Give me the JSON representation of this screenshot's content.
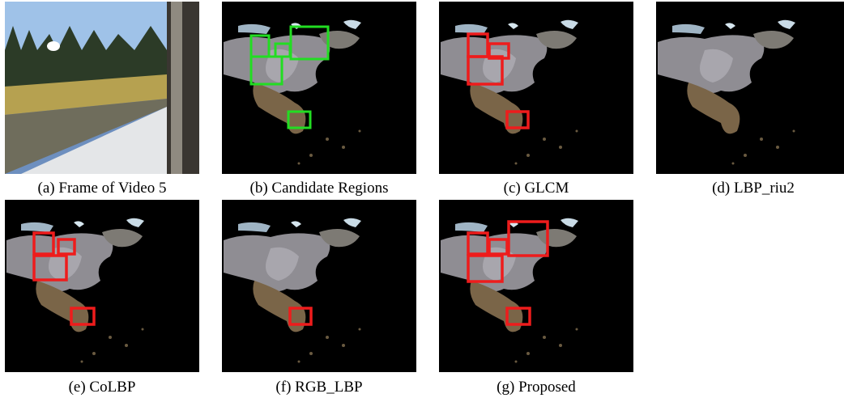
{
  "panels": [
    {
      "caption": "(a) Frame of Video 5"
    },
    {
      "caption": "(b) Candidate Regions"
    },
    {
      "caption": "(c) GLCM"
    },
    {
      "caption": "(d) LBP_riu2"
    },
    {
      "caption": "(e) CoLBP"
    },
    {
      "caption": "(f) RGB_LBP"
    },
    {
      "caption": "(g) Proposed"
    }
  ]
}
